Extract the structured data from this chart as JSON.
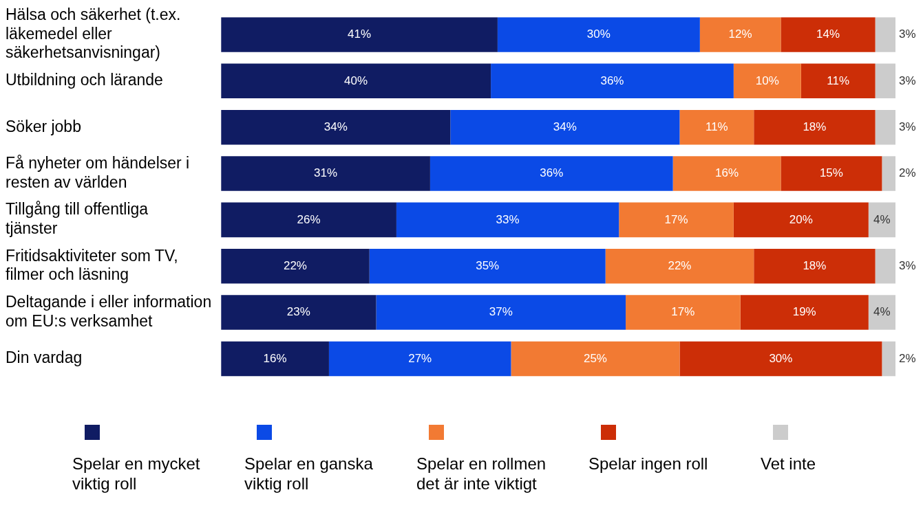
{
  "chart_data": {
    "type": "bar",
    "orientation": "horizontal",
    "stacked": true,
    "legend": "bottom",
    "categories": [
      "Hälsa och säkerhet (t.ex. läkemedel eller säkerhetsanvisningar)",
      "Utbildning och lärande",
      "Söker jobb",
      "Få nyheter om händelser i resten av världen",
      "Tillgång till offentliga tjänster",
      "Fritidsaktiviteter som TV, filmer och läsning",
      "Deltagande i eller information om EU:s verksamhet",
      "Din vardag"
    ],
    "series": [
      {
        "name": "Spelar en mycket viktig roll",
        "color": "#101c63",
        "values": [
          41,
          40,
          34,
          31,
          26,
          22,
          23,
          16
        ],
        "value_labels": [
          "41%",
          "40%",
          "34%",
          "31%",
          "26%",
          "22%",
          "23%",
          "16%"
        ]
      },
      {
        "name": "Spelar en ganska viktig roll",
        "color": "#0b4ae6",
        "values": [
          30,
          36,
          34,
          36,
          33,
          35,
          37,
          27
        ],
        "value_labels": [
          "30%",
          "36%",
          "34%",
          "36%",
          "33%",
          "35%",
          "37%",
          "27%"
        ]
      },
      {
        "name": "Spelar en rollmen det är inte viktigt",
        "color": "#f27a33",
        "values": [
          12,
          10,
          11,
          16,
          17,
          22,
          17,
          25
        ],
        "value_labels": [
          "12%",
          "10%",
          "11%",
          "16%",
          "17%",
          "22%",
          "17%",
          "25%"
        ]
      },
      {
        "name": "Spelar ingen roll",
        "color": "#cc2e07",
        "values": [
          14,
          11,
          18,
          15,
          20,
          18,
          19,
          30
        ],
        "value_labels": [
          "14%",
          "11%",
          "18%",
          "15%",
          "20%",
          "18%",
          "19%",
          "30%"
        ]
      },
      {
        "name": "Vet inte",
        "color": "#cccccc",
        "values": [
          3,
          3,
          3,
          2,
          4,
          3,
          4,
          2
        ],
        "value_labels": [
          "3%",
          "3%",
          "3%",
          "2%",
          "4%",
          "3%",
          "4%",
          "2%"
        ]
      }
    ]
  }
}
